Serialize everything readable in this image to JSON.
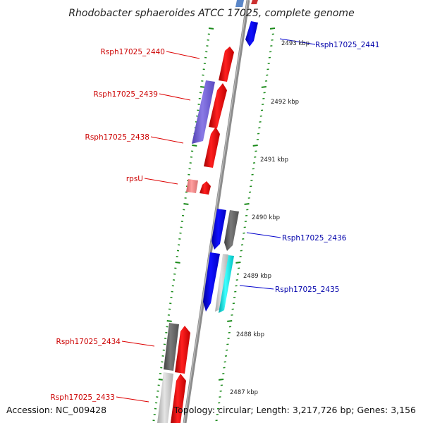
{
  "title": "Rhodobacter sphaeroides ATCC 17025, complete genome",
  "footer": {
    "accession": "Accession: NC_009428",
    "topology": "Topology: circular; Length: 3,217,726 bp; Genes: 3,156"
  },
  "colors": {
    "forward_gene": "#ee0000",
    "reverse_gene": "#0000ee",
    "gene_gray": "#666666",
    "gene_lightgray": "#c8c8c8",
    "gene_cyan": "#00e5e5",
    "gene_purple": "#7060d0",
    "gene_pink": "#f08080",
    "tick_green": "#1a8a1a",
    "backbone": "#888888"
  },
  "scale_labels": [
    "2493 kbp",
    "2492 kbp",
    "2491 kbp",
    "2490 kbp",
    "2489 kbp",
    "2488 kbp",
    "2487 kbp"
  ],
  "gene_labels": [
    {
      "text": "Rsph17025_2441",
      "strand": "reverse"
    },
    {
      "text": "Rsph17025_2440",
      "strand": "forward"
    },
    {
      "text": "Rsph17025_2439",
      "strand": "forward"
    },
    {
      "text": "Rsph17025_2438",
      "strand": "forward"
    },
    {
      "text": "rpsU",
      "strand": "forward"
    },
    {
      "text": "Rsph17025_2436",
      "strand": "reverse"
    },
    {
      "text": "Rsph17025_2435",
      "strand": "reverse"
    },
    {
      "text": "Rsph17025_2434",
      "strand": "forward"
    },
    {
      "text": "Rsph17025_2433",
      "strand": "forward"
    }
  ]
}
